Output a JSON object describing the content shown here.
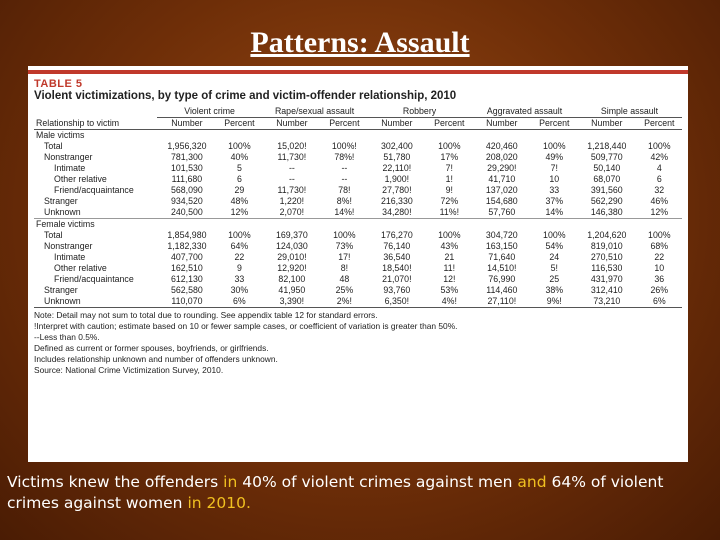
{
  "slide": {
    "title": "Patterns: Assault",
    "caption": [
      {
        "text": "Victims knew the offenders",
        "hl": false
      },
      {
        "text": " in ",
        "hl": true
      },
      {
        "text": "40% of violent crimes against men ",
        "hl": false
      },
      {
        "text": "and",
        "hl": true
      },
      {
        "text": " 64% of violent crimes against women ",
        "hl": false
      },
      {
        "text": "in 2010.",
        "hl": true
      }
    ],
    "colors": {
      "highlight": "#f0c020",
      "table_accent": "#c0392b"
    }
  },
  "table": {
    "label": "TABLE 5",
    "title": "Violent victimizations, by type of crime and victim-offender relationship, 2010",
    "groups": [
      "Violent crime",
      "Rape/sexual assault",
      "Robbery",
      "Aggravated assault",
      "Simple assault"
    ],
    "row_header": "Relationship to victim",
    "sub_headers": [
      "Number",
      "Percent"
    ],
    "rows": [
      {
        "label": "Male victims",
        "indent": 0,
        "section": true,
        "cells": []
      },
      {
        "label": "Total",
        "indent": 1,
        "cells": [
          "1,956,320",
          "100%",
          "15,020!",
          "100%!",
          "302,400",
          "100%",
          "420,460",
          "100%",
          "1,218,440",
          "100%"
        ]
      },
      {
        "label": "Nonstranger",
        "indent": 1,
        "cells": [
          "781,300",
          "40%",
          "11,730!",
          "78%!",
          "51,780",
          "17%",
          "208,020",
          "49%",
          "509,770",
          "42%"
        ]
      },
      {
        "label": "Intimate",
        "indent": 2,
        "cells": [
          "101,530",
          "5",
          "--",
          "--",
          "22,110!",
          "7!",
          "29,290!",
          "7!",
          "50,140",
          "4"
        ]
      },
      {
        "label": "Other relative",
        "indent": 2,
        "cells": [
          "111,680",
          "6",
          "--",
          "--",
          "1,900!",
          "1!",
          "41,710",
          "10",
          "68,070",
          "6"
        ]
      },
      {
        "label": "Friend/acquaintance",
        "indent": 2,
        "cells": [
          "568,090",
          "29",
          "11,730!",
          "78!",
          "27,780!",
          "9!",
          "137,020",
          "33",
          "391,560",
          "32"
        ]
      },
      {
        "label": "Stranger",
        "indent": 1,
        "cells": [
          "934,520",
          "48%",
          "1,220!",
          "8%!",
          "216,330",
          "72%",
          "154,680",
          "37%",
          "562,290",
          "46%"
        ]
      },
      {
        "label": "Unknown",
        "indent": 1,
        "cells": [
          "240,500",
          "12%",
          "2,070!",
          "14%!",
          "34,280!",
          "11%!",
          "57,760",
          "14%",
          "146,380",
          "12%"
        ]
      },
      {
        "label": "Female victims",
        "indent": 0,
        "section": true,
        "cells": []
      },
      {
        "label": "Total",
        "indent": 1,
        "cells": [
          "1,854,980",
          "100%",
          "169,370",
          "100%",
          "176,270",
          "100%",
          "304,720",
          "100%",
          "1,204,620",
          "100%"
        ]
      },
      {
        "label": "Nonstranger",
        "indent": 1,
        "cells": [
          "1,182,330",
          "64%",
          "124,030",
          "73%",
          "76,140",
          "43%",
          "163,150",
          "54%",
          "819,010",
          "68%"
        ]
      },
      {
        "label": "Intimate",
        "indent": 2,
        "cells": [
          "407,700",
          "22",
          "29,010!",
          "17!",
          "36,540",
          "21",
          "71,640",
          "24",
          "270,510",
          "22"
        ]
      },
      {
        "label": "Other relative",
        "indent": 2,
        "cells": [
          "162,510",
          "9",
          "12,920!",
          "8!",
          "18,540!",
          "11!",
          "14,510!",
          "5!",
          "116,530",
          "10"
        ]
      },
      {
        "label": "Friend/acquaintance",
        "indent": 2,
        "cells": [
          "612,130",
          "33",
          "82,100",
          "48",
          "21,070!",
          "12!",
          "76,990",
          "25",
          "431,970",
          "36"
        ]
      },
      {
        "label": "Stranger",
        "indent": 1,
        "cells": [
          "562,580",
          "30%",
          "41,950",
          "25%",
          "93,760",
          "53%",
          "114,460",
          "38%",
          "312,410",
          "26%"
        ]
      },
      {
        "label": "Unknown",
        "indent": 1,
        "last": true,
        "cells": [
          "110,070",
          "6%",
          "3,390!",
          "2%!",
          "6,350!",
          "4%!",
          "27,110!",
          "9%!",
          "73,210",
          "6%"
        ]
      }
    ],
    "notes": [
      "Note: Detail may not sum to total due to rounding. See appendix table 12 for standard errors.",
      "!Interpret with caution; estimate based on 10 or fewer sample cases, or coefficient of variation is greater than 50%.",
      "--Less than 0.5%.",
      "Defined as current or former spouses, boyfriends, or girlfriends.",
      "Includes relationship unknown and number of offenders unknown.",
      "Source: National Crime Victimization Survey, 2010."
    ]
  }
}
